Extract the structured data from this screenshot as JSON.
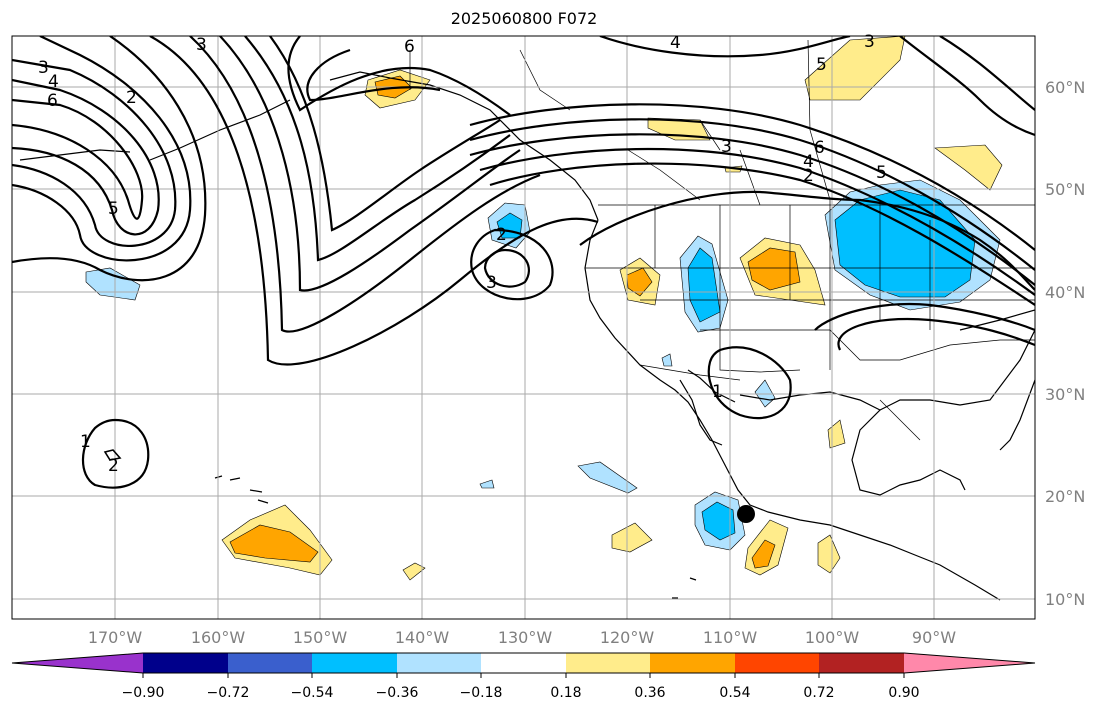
{
  "title": "2025060800 F072",
  "lat_labels": [
    "60°N",
    "50°N",
    "40°N",
    "30°N",
    "20°N",
    "10°N"
  ],
  "lon_labels": [
    "170°W",
    "160°W",
    "150°W",
    "140°W",
    "130°W",
    "120°W",
    "110°W",
    "100°W",
    "90°W"
  ],
  "colorbar": {
    "ticks": [
      "−0.90",
      "−0.72",
      "−0.54",
      "−0.36",
      "−0.18",
      "0.18",
      "0.36",
      "0.54",
      "0.72",
      "0.90"
    ],
    "colors": [
      "#9932cc",
      "#00008b",
      "#3a5fcd",
      "#00bfff",
      "#b0e2ff",
      "#ffffff",
      "#ffec8b",
      "#ffa500",
      "#ff4500",
      "#b22222",
      "#ff88aa"
    ]
  },
  "contour_labels": [
    {
      "t": "3"
    },
    {
      "t": "4"
    },
    {
      "t": "6"
    },
    {
      "t": "2"
    },
    {
      "t": "5"
    },
    {
      "t": "3"
    },
    {
      "t": "6"
    },
    {
      "t": "4"
    },
    {
      "t": "5"
    },
    {
      "t": "3"
    },
    {
      "t": "2"
    },
    {
      "t": "3"
    },
    {
      "t": "6"
    },
    {
      "t": "4"
    },
    {
      "t": "2"
    },
    {
      "t": "5"
    },
    {
      "t": "3"
    },
    {
      "t": "1"
    },
    {
      "t": "2"
    },
    {
      "t": "1"
    }
  ]
}
